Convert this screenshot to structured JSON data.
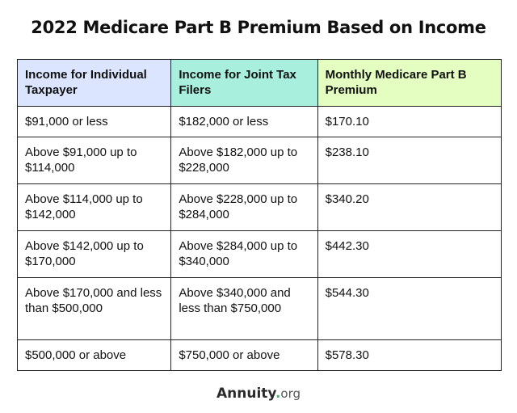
{
  "title": "2022 Medicare Part B Premium Based on Income",
  "table": {
    "headers": [
      "Income for Individual Taxpayer",
      "Income for Joint Tax Filers",
      "Monthly Medicare Part B Premium"
    ],
    "header_colors": [
      "#dce5ff",
      "#a8efdd",
      "#e4fdc0"
    ],
    "rows": [
      [
        "$91,000 or less",
        "$182,000 or less",
        "$170.10"
      ],
      [
        "Above $91,000 up to $114,000",
        "Above $182,000 up to $228,000",
        "$238.10"
      ],
      [
        "Above $114,000 up to $142,000",
        "Above $228,000 up to $284,000",
        "$340.20"
      ],
      [
        "Above $142,000 up to $170,000",
        "Above $284,000 up to $340,000",
        "$442.30"
      ],
      [
        "Above $170,000 and less than $500,000",
        "Above $340,000 and less than $750,000",
        "$544.30"
      ],
      [
        "$500,000 or above",
        "$750,000 or above",
        "$578.30"
      ]
    ]
  },
  "footer": {
    "brand_name": "Annuity",
    "brand_dot": ".",
    "brand_tld": "org",
    "dot_color": "#3bbf62"
  }
}
